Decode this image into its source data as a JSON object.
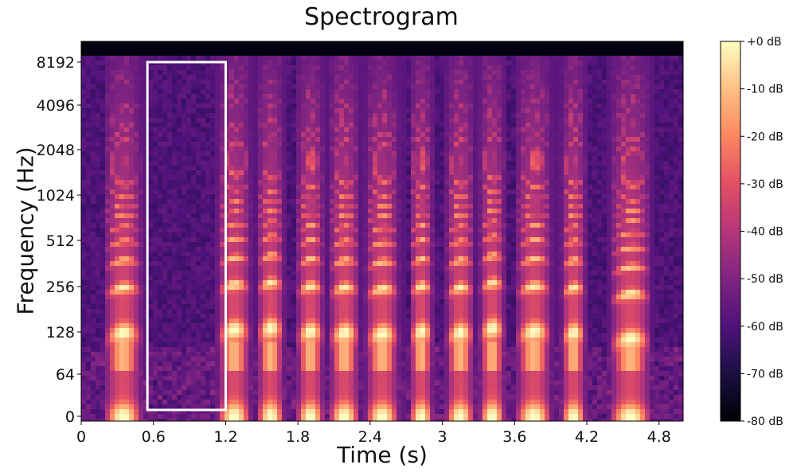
{
  "chart_data": {
    "type": "heatmap",
    "title": "Spectrogram",
    "xlabel": "Time (s)",
    "ylabel": "Frequency (Hz)",
    "xlim": [
      0,
      5.0
    ],
    "x_ticks": [
      0,
      0.6,
      1.2,
      1.8,
      2.4,
      3,
      3.6,
      4.2,
      4.8
    ],
    "x_tick_labels": [
      "0",
      "0.6",
      "1.2",
      "1.8",
      "2.4",
      "3",
      "3.6",
      "4.2",
      "4.8"
    ],
    "y_scale": "symlog",
    "y_ticks": [
      0,
      64,
      128,
      256,
      512,
      1024,
      2048,
      4096,
      8192
    ],
    "y_tick_labels": [
      "0",
      "64",
      "128",
      "256",
      "512",
      "1024",
      "2048",
      "4096",
      "8192"
    ],
    "colorbar": {
      "colormap": "magma",
      "range_db": [
        -80,
        0
      ],
      "ticks": [
        0,
        -10,
        -20,
        -30,
        -40,
        -50,
        -60,
        -70,
        -80
      ],
      "tick_labels": [
        "+0 dB",
        "-10 dB",
        "-20 dB",
        "-30 dB",
        "-40 dB",
        "-50 dB",
        "-60 dB",
        "-70 dB",
        "-80 dB"
      ]
    },
    "annotation": {
      "shape": "rectangle",
      "color": "#ffffff",
      "t_start": 0.55,
      "t_end": 1.2,
      "f_low": 0,
      "f_high": 8192
    },
    "voiced_segments": [
      {
        "t0": 0.18,
        "t1": 0.55,
        "f0": 110
      },
      {
        "t0": 1.12,
        "t1": 1.45,
        "f0": 115
      },
      {
        "t0": 1.45,
        "t1": 1.72,
        "f0": 118
      },
      {
        "t0": 1.78,
        "t1": 2.05,
        "f0": 112
      },
      {
        "t0": 2.05,
        "t1": 2.35,
        "f0": 110
      },
      {
        "t0": 2.35,
        "t1": 2.68,
        "f0": 108
      },
      {
        "t0": 2.72,
        "t1": 2.95,
        "f0": 112
      },
      {
        "t0": 3.02,
        "t1": 3.3,
        "f0": 110
      },
      {
        "t0": 3.3,
        "t1": 3.55,
        "f0": 118
      },
      {
        "t0": 3.6,
        "t1": 3.95,
        "f0": 112
      },
      {
        "t0": 3.98,
        "t1": 4.22,
        "f0": 110
      },
      {
        "t0": 4.38,
        "t1": 4.78,
        "f0": 100
      }
    ]
  },
  "colors": {
    "background": "#ffffff",
    "plot_top_band": "#000004",
    "annotation": "#ffffff",
    "text": "#111111"
  }
}
